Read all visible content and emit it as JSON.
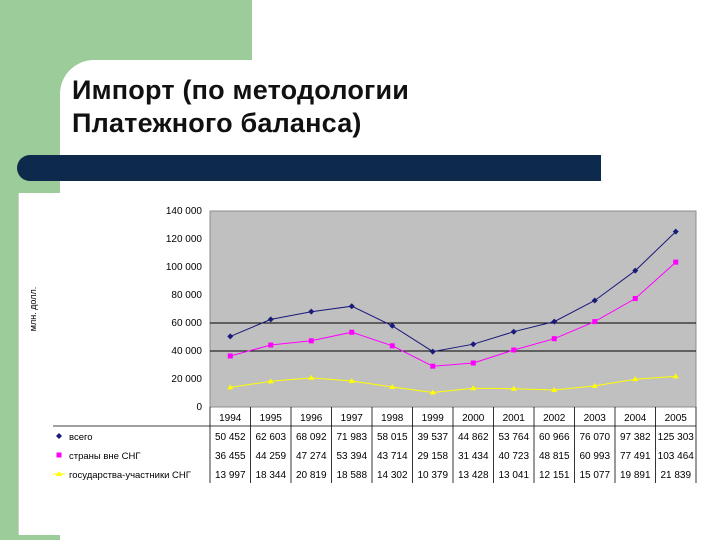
{
  "slide": {
    "title_line1": "Импорт (по методологии",
    "title_line2": "Платежного баланса)"
  },
  "colors": {
    "green": "#9ccc99",
    "navy": "#0d2a4d",
    "plot_bg": "#c0c0c0"
  },
  "chart_data": {
    "type": "line",
    "title": "",
    "ylabel": "млн. долл.",
    "xlabel": "",
    "ylim": [
      0,
      140000
    ],
    "y_ticks": [
      {
        "value": 0,
        "label": "0"
      },
      {
        "value": 20000,
        "label": "20 000"
      },
      {
        "value": 40000,
        "label": "40 000"
      },
      {
        "value": 60000,
        "label": "60 000"
      },
      {
        "value": 80000,
        "label": "80 000"
      },
      {
        "value": 100000,
        "label": "100 000"
      },
      {
        "value": 120000,
        "label": "120 000"
      },
      {
        "value": 140000,
        "label": "140 000"
      }
    ],
    "categories": [
      "1994",
      "1995",
      "1996",
      "1997",
      "1998",
      "1999",
      "2000",
      "2001",
      "2002",
      "2003",
      "2004",
      "2005"
    ],
    "grid": "horizontal lines at 40 000 and 60 000",
    "legend": "data table below plot",
    "series": [
      {
        "name": "всего",
        "color": "#1a1a7a",
        "marker": "diamond",
        "values": [
          50452,
          62603,
          68092,
          71983,
          58015,
          39537,
          44862,
          53764,
          60966,
          76070,
          97382,
          125303
        ],
        "labels": [
          "50 452",
          "62 603",
          "68 092",
          "71 983",
          "58 015",
          "39 537",
          "44 862",
          "53 764",
          "60 966",
          "76 070",
          "97 382",
          "125 303"
        ]
      },
      {
        "name": "страны вне СНГ",
        "color": "#ff00ff",
        "marker": "square",
        "values": [
          36455,
          44259,
          47274,
          53394,
          43714,
          29158,
          31434,
          40723,
          48815,
          60993,
          77491,
          103464
        ],
        "labels": [
          "36 455",
          "44 259",
          "47 274",
          "53 394",
          "43 714",
          "29 158",
          "31 434",
          "40 723",
          "48 815",
          "60 993",
          "77 491",
          "103 464"
        ]
      },
      {
        "name": "государства-участники СНГ",
        "color": "#ffff00",
        "marker": "triangle",
        "values": [
          13997,
          18344,
          20819,
          18588,
          14302,
          10379,
          13428,
          13041,
          12151,
          15077,
          19891,
          21839
        ],
        "labels": [
          "13 997",
          "18 344",
          "20 819",
          "18 588",
          "14 302",
          "10 379",
          "13 428",
          "13 041",
          "12 151",
          "15 077",
          "19 891",
          "21 839"
        ]
      }
    ]
  }
}
